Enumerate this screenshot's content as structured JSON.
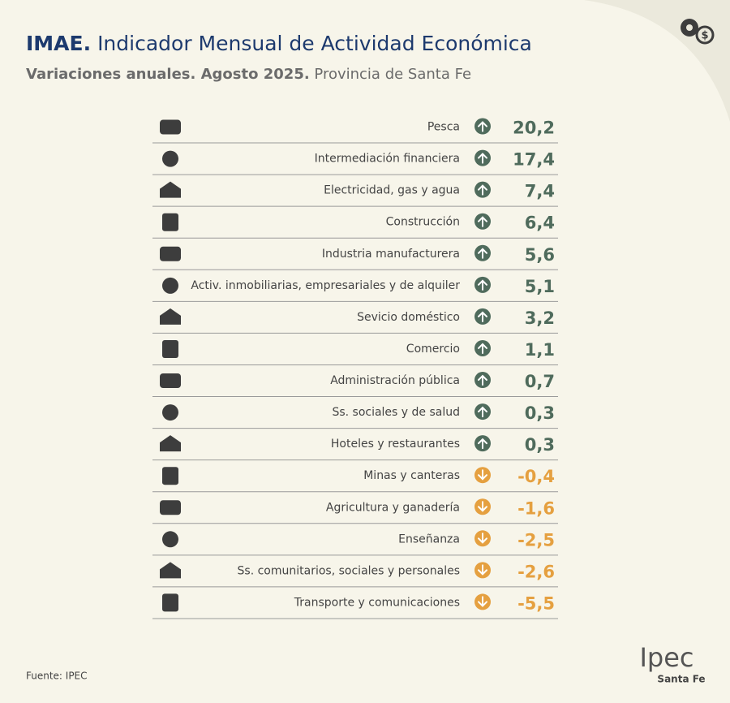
{
  "header": {
    "title_bold": "IMAE.",
    "title": "Indicador Mensual de Actividad Económica",
    "subtitle_bold": "Variaciones anuales. Agosto 2025.",
    "subtitle": "Provincia de Santa Fe"
  },
  "table": {
    "rows": [
      {
        "label": "Pesca",
        "value": "20,2",
        "direction": "up"
      },
      {
        "label": "Intermediación financiera",
        "value": "17,4",
        "direction": "up"
      },
      {
        "label": "Electricidad, gas y agua",
        "value": "7,4",
        "direction": "up"
      },
      {
        "label": "Construcción",
        "value": "6,4",
        "direction": "up"
      },
      {
        "label": "Industria manufacturera",
        "value": "5,6",
        "direction": "up"
      },
      {
        "label": "Activ. inmobiliarias, empresariales y de alquiler",
        "value": "5,1",
        "direction": "up"
      },
      {
        "label": "Sevicio doméstico",
        "value": "3,2",
        "direction": "up"
      },
      {
        "label": "Comercio",
        "value": "1,1",
        "direction": "up"
      },
      {
        "label": "Administración pública",
        "value": "0,7",
        "direction": "up"
      },
      {
        "label": "Ss. sociales y de salud",
        "value": "0,3",
        "direction": "up"
      },
      {
        "label": "Hoteles y restaurantes",
        "value": "0,3",
        "direction": "up"
      },
      {
        "label": "Minas y canteras",
        "value": "-0,4",
        "direction": "down"
      },
      {
        "label": "Agricultura y ganadería",
        "value": "-1,6",
        "direction": "down"
      },
      {
        "label": "Enseñanza",
        "value": "-2,5",
        "direction": "down"
      },
      {
        "label": "Ss. comunitarios, sociales y personales",
        "value": "-2,6",
        "direction": "down"
      },
      {
        "label": "Transporte y comunicaciones",
        "value": "-5,5",
        "direction": "down"
      }
    ]
  },
  "footer": {
    "source": "Fuente: IPEC",
    "logo": "Ipec",
    "logo_sub": "Santa Fe"
  }
}
